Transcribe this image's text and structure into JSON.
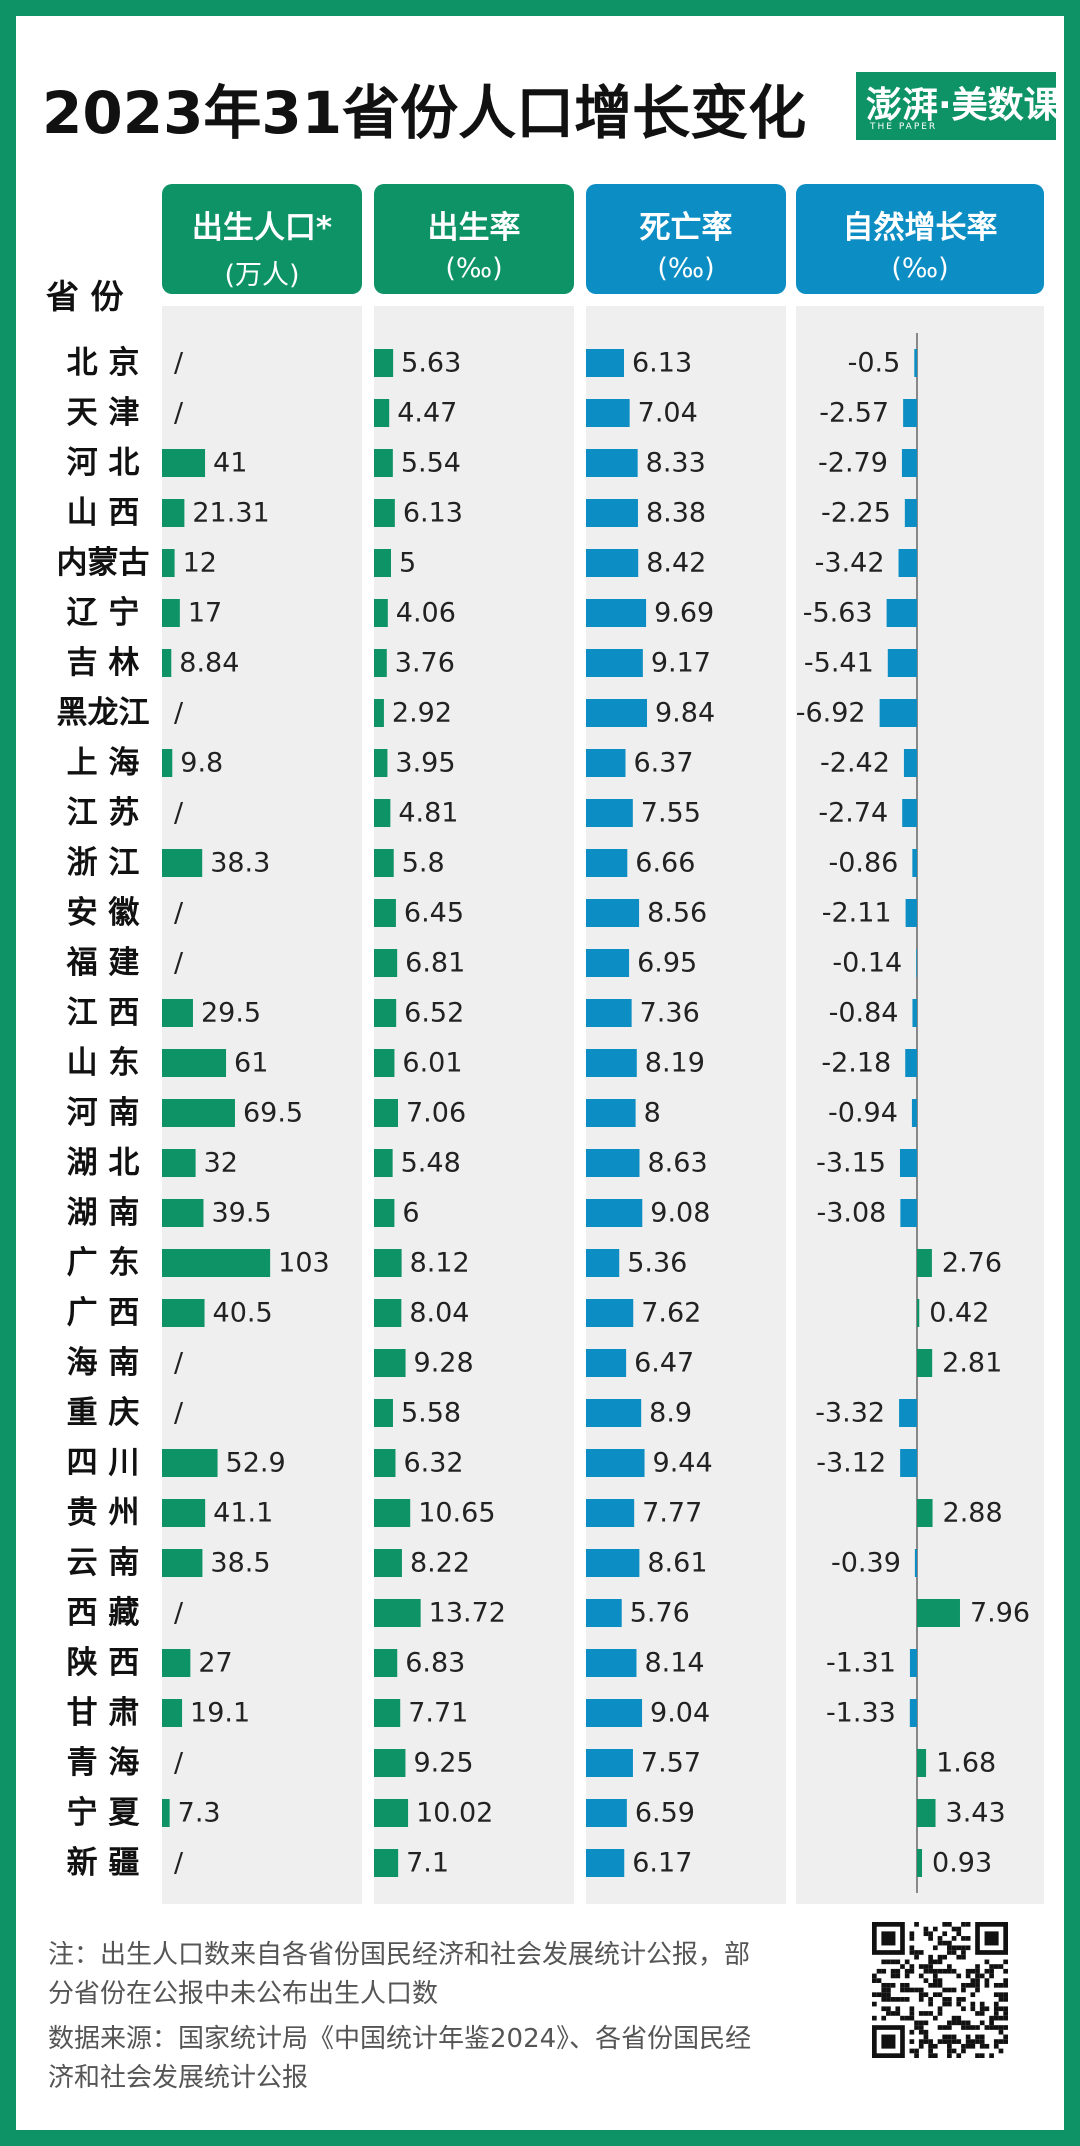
{
  "title": "2023年31省份人口增长变化",
  "logo": {
    "main": "澎湃·美数课",
    "sub": "THE PAPER"
  },
  "headers": {
    "province": "省 份",
    "births": {
      "line1": "出生人口*",
      "line2": "(万人)"
    },
    "birth_rate": {
      "line1": "出生率",
      "line2": "(‰)"
    },
    "death_rate": {
      "line1": "死亡率",
      "line2": "(‰)"
    },
    "growth_rate": {
      "line1": "自然增长率",
      "line2": "(‰)"
    }
  },
  "colors": {
    "green": "#0e9367",
    "blue": "#0c8ec4",
    "panel": "#efefef"
  },
  "notes": {
    "note": "注：出生人口数来自各省份国民经济和社会发展统计公报，部分省份在公报中未公布出生人口数",
    "source": "数据来源：国家统计局《中国统计年鉴2024》、各省份国民经济和社会发展统计公报"
  },
  "qr_icon": "qr-code",
  "chart_data": {
    "type": "bar",
    "categories": [
      "北 京",
      "天 津",
      "河 北",
      "山 西",
      "内蒙古",
      "辽 宁",
      "吉 林",
      "黑龙江",
      "上 海",
      "江 苏",
      "浙 江",
      "安 徽",
      "福 建",
      "江 西",
      "山 东",
      "河 南",
      "湖 北",
      "湖 南",
      "广 东",
      "广 西",
      "海 南",
      "重 庆",
      "四 川",
      "贵 州",
      "云 南",
      "西 藏",
      "陕 西",
      "甘 肃",
      "青 海",
      "宁 夏",
      "新 疆"
    ],
    "series": [
      {
        "name": "出生人口*(万人)",
        "values": [
          null,
          null,
          41,
          21.31,
          12,
          17,
          8.84,
          null,
          9.8,
          null,
          38.3,
          null,
          null,
          29.5,
          61,
          69.5,
          32,
          39.5,
          103,
          40.5,
          null,
          null,
          52.9,
          41.1,
          38.5,
          null,
          27,
          19.1,
          null,
          7.3,
          null
        ],
        "missing_label": "/"
      },
      {
        "name": "出生率(‰)",
        "values": [
          5.63,
          4.47,
          5.54,
          6.13,
          5,
          4.06,
          3.76,
          2.92,
          3.95,
          4.81,
          5.8,
          6.45,
          6.81,
          6.52,
          6.01,
          7.06,
          5.48,
          6,
          8.12,
          8.04,
          9.28,
          5.58,
          6.32,
          10.65,
          8.22,
          13.72,
          6.83,
          7.71,
          9.25,
          10.02,
          7.1
        ]
      },
      {
        "name": "死亡率(‰)",
        "values": [
          6.13,
          7.04,
          8.33,
          8.38,
          8.42,
          9.69,
          9.17,
          9.84,
          6.37,
          7.55,
          6.66,
          8.56,
          6.95,
          7.36,
          8.19,
          8,
          8.63,
          9.08,
          5.36,
          7.62,
          6.47,
          8.9,
          9.44,
          7.77,
          8.61,
          5.76,
          8.14,
          9.04,
          7.57,
          6.59,
          6.17
        ]
      },
      {
        "name": "自然增长率(‰)",
        "values": [
          -0.5,
          -2.57,
          -2.79,
          -2.25,
          -3.42,
          -5.63,
          -5.41,
          -6.92,
          -2.42,
          -2.74,
          -0.86,
          -2.11,
          -0.14,
          -0.84,
          -2.18,
          -0.94,
          -3.15,
          -3.08,
          2.76,
          0.42,
          2.81,
          -3.32,
          -3.12,
          2.88,
          -0.39,
          7.96,
          -1.31,
          -1.33,
          1.68,
          3.43,
          0.93
        ]
      }
    ]
  }
}
